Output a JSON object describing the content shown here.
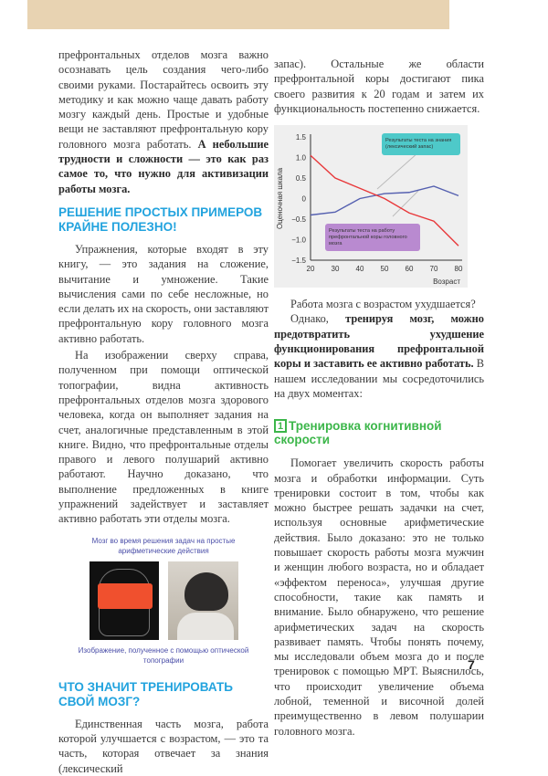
{
  "left": {
    "p1": "префронтальных отделов мозга важно осознавать цель создания чего-либо своими руками. Постарайтесь освоить эту методику и как можно чаще давать работу мозгу каждый день. Простые и удобные вещи не заставляют префронтальную кору головного мозга работать. ",
    "p1_bold": "А небольшие трудности и сложности — это как раз самое то, что нужно для активизации работы мозга.",
    "h1": "РЕШЕНИЕ ПРОСТЫХ ПРИМЕРОВ КРАЙНЕ ПОЛЕЗНО!",
    "p2": "Упражнения, которые входят в эту книгу, — это задания на сложение, вычитание и умножение. Такие вычисления сами по себе несложные, но если делать их на скорость, они заставляют префронтальную кору головного мозга активно работать.",
    "p3": "На изображении сверху справа, полученном при помощи оптической топографии, видна активность префронтальных отделов мозга здорового человека, когда он выполняет задания на счет, аналогичные представленным в этой книге. Видно, что префронтальные отделы правого и левого полушарий активно работают. Научно доказано, что выполнение предложенных в книге упражнений задействует и заставляет активно работать эти отделы мозга.",
    "figure": {
      "title": "Мозг во время решения задач на простые арифметические действия",
      "caption": "Изображение, полученное с помощью оптической топографии"
    },
    "h2": "ЧТО ЗНАЧИТ ТРЕНИРОВАТЬ СВОЙ МОЗГ?",
    "p4": "Единственная часть мозга, работа которой улучшается с возрастом, — это та часть, которая отвечает за знания (лексический"
  },
  "right": {
    "p1": "запас). Остальные же области префронтальной коры достигают пика своего развития к 20 годам и затем их функциональность постепенно снижается.",
    "p2": "Работа мозга с возрастом ухудшается?",
    "p3a": "Однако, ",
    "p3_bold": "тренируя мозг, можно предотвратить ухудшение функционирования префронтальной коры и заставить ее активно работать.",
    "p3b": " В нашем исследовании мы сосредоточились на двух моментах:",
    "h_num": "1",
    "h": "Тренировка когнитивной скорости",
    "p4": "Помогает увеличить скорость работы мозга и обработки информации. Суть тренировки состоит в том, чтобы как можно быстрее решать задачки на счет, используя основные арифметические действия. Было доказано: это не только повышает скорость работы мозга мужчин и женщин любого возраста, но и обладает «эффектом переноса», улучшая другие способности, такие как память и внимание. Было обнаружено, что решение арифметических задач на скорость развивает память. Чтобы понять почему, мы исследовали объем мозга до и после тренировок с помощью МРТ. Выяснилось, что происходит увеличение объема лобной, теменной и височной долей преимущественно в левом полушарии головного мозга."
  },
  "chart_data": {
    "type": "line",
    "x": [
      20,
      30,
      40,
      50,
      60,
      70,
      80
    ],
    "xlabel": "Возраст",
    "ylabel": "Оценочная шкала",
    "xlim": [
      20,
      80
    ],
    "ylim": [
      -1.5,
      1.5
    ],
    "xticks": [
      "20",
      "30",
      "40",
      "50",
      "60",
      "70",
      "80"
    ],
    "yticks": [
      "1.5",
      "1.0",
      "0.5",
      "0",
      "−0.5",
      "−1.0",
      "−1.5"
    ],
    "grid": false,
    "series": [
      {
        "name": "Результаты теста на знания (лексический запас)",
        "color": "#5560b0",
        "values": [
          -0.4,
          -0.33,
          0.0,
          0.12,
          0.15,
          0.3,
          0.07
        ]
      },
      {
        "name": "Результаты теста на работу префронтальной коры головного мозга",
        "color": "#e8383a",
        "values": [
          1.05,
          0.5,
          0.25,
          0.0,
          -0.35,
          -0.55,
          -1.15
        ]
      }
    ],
    "label_colors": [
      "#4ec9c9",
      "#b98ad0"
    ]
  },
  "page_number": "7",
  "colors": {
    "band": "#e8d3b2",
    "heading_blue": "#22a3de",
    "heading_green": "#3cb64a"
  }
}
